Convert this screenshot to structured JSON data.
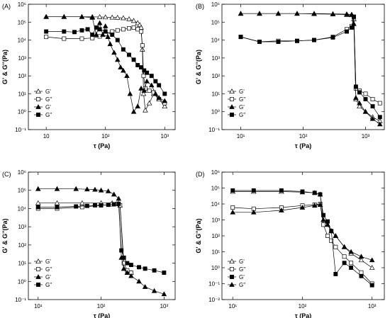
{
  "chart_data": [
    {
      "panel": "(A)",
      "type": "line",
      "ylabel": "G' & G''(Pa)",
      "xlabel": "τ (Pa)",
      "xscale": "log",
      "yscale": "log",
      "xlim": [
        5,
        1500
      ],
      "ylim": [
        0.1,
        1000000
      ],
      "xticks": [
        "10",
        "10²",
        "10³"
      ],
      "yticks": [
        "10⁻¹",
        "10⁰",
        "10¹",
        "10²",
        "10³",
        "10⁴",
        "10⁵",
        "10⁶"
      ],
      "legend_position": "bottom-left",
      "series": [
        {
          "name": "G'",
          "marker": "triangle-open",
          "x": [
            10,
            20,
            40,
            60,
            80,
            100,
            130,
            160,
            200,
            250,
            300,
            350,
            380,
            400,
            420,
            440,
            470,
            550,
            650,
            800,
            1000
          ],
          "y": [
            200000,
            200000,
            200000,
            198000,
            195000,
            190000,
            185000,
            180000,
            170000,
            150000,
            120000,
            90000,
            70000,
            50000,
            3000,
            10,
            1.2,
            3,
            10,
            5,
            2
          ]
        },
        {
          "name": "G''",
          "marker": "square-open",
          "x": [
            10,
            20,
            40,
            60,
            80,
            100,
            130,
            160,
            200,
            250,
            300,
            350,
            400,
            420,
            440,
            470,
            550,
            650,
            800,
            1000
          ],
          "y": [
            15000,
            12000,
            12000,
            13000,
            16000,
            22000,
            30000,
            35000,
            40000,
            45000,
            50000,
            40000,
            30000,
            5000,
            100,
            20,
            15,
            12,
            5,
            3
          ]
        },
        {
          "name": "G'",
          "marker": "triangle-filled",
          "x": [
            10,
            20,
            40,
            60,
            70,
            80,
            90,
            100,
            110,
            120,
            140,
            160,
            180,
            200,
            230,
            260,
            300,
            350,
            400,
            450,
            500,
            600,
            700,
            800,
            1000
          ],
          "y": [
            200000,
            200000,
            200000,
            180000,
            20000,
            90000,
            20000,
            60000,
            15000,
            6000,
            2000,
            800,
            300,
            200,
            100,
            10,
            1,
            2,
            20,
            15,
            50,
            30,
            10,
            6,
            4
          ]
        },
        {
          "name": "G''",
          "marker": "square-filled",
          "x": [
            10,
            20,
            30,
            40,
            50,
            60,
            70,
            80,
            100,
            130,
            160,
            200,
            250,
            300,
            350,
            400,
            450,
            500,
            600,
            700,
            800,
            1000
          ],
          "y": [
            30000,
            30000,
            28000,
            35000,
            40000,
            20000,
            50000,
            40000,
            30000,
            20000,
            10000,
            3000,
            1500,
            800,
            400,
            300,
            200,
            150,
            100,
            50,
            30,
            10
          ]
        }
      ]
    },
    {
      "panel": "(B)",
      "type": "line",
      "ylabel": "G' & G''(Pa)",
      "xlabel": "τ (Pa)",
      "xscale": "log",
      "yscale": "log",
      "xlim": [
        5,
        2000
      ],
      "ylim": [
        0.1,
        1000000
      ],
      "xticks": [
        "10¹",
        "10²",
        "10³"
      ],
      "yticks": [
        "10⁻¹",
        "10⁰",
        "10¹",
        "10²",
        "10³",
        "10⁴",
        "10⁵",
        "10⁶"
      ],
      "legend_position": "bottom-left",
      "series": [
        {
          "name": "G'",
          "marker": "triangle-open",
          "x": [
            10,
            20,
            40,
            80,
            150,
            300,
            500,
            600,
            650,
            700,
            800,
            1000,
            1300,
            1700
          ],
          "y": [
            300000,
            300000,
            300000,
            300000,
            290000,
            280000,
            260000,
            250000,
            150000,
            5,
            2,
            1,
            0.5,
            0.3
          ]
        },
        {
          "name": "G''",
          "marker": "square-open",
          "x": [
            10,
            20,
            40,
            80,
            150,
            300,
            500,
            600,
            650,
            700,
            800,
            1000,
            1300,
            1700
          ],
          "y": [
            15000,
            8000,
            9000,
            9000,
            10000,
            15000,
            40000,
            60000,
            200000,
            20,
            15,
            10,
            5,
            3
          ]
        },
        {
          "name": "G'",
          "marker": "triangle-filled",
          "x": [
            10,
            20,
            40,
            80,
            150,
            300,
            500,
            600,
            650,
            700,
            800,
            1000,
            1300,
            1700
          ],
          "y": [
            300000,
            300000,
            300000,
            300000,
            300000,
            290000,
            280000,
            270000,
            80000,
            6,
            3,
            1,
            0.4,
            0.2
          ]
        },
        {
          "name": "G''",
          "marker": "square-filled",
          "x": [
            10,
            20,
            40,
            80,
            150,
            300,
            500,
            600,
            650,
            700,
            800,
            1000,
            1300,
            1700
          ],
          "y": [
            15000,
            8000,
            8000,
            9000,
            10000,
            14000,
            30000,
            50000,
            200000,
            25,
            12,
            5,
            2,
            0.5
          ]
        }
      ]
    },
    {
      "panel": "(C)",
      "type": "line",
      "ylabel": "G' & G''(Pa)",
      "xlabel": "τ (Pa)",
      "xscale": "log",
      "yscale": "log",
      "xlim": [
        7,
        1500
      ],
      "ylim": [
        0.1,
        1000000
      ],
      "xticks": [
        "10¹",
        "10²",
        "10³"
      ],
      "yticks": [
        "10⁻¹",
        "10⁰",
        "10¹",
        "10²",
        "10³",
        "10⁴",
        "10⁵",
        "10⁶"
      ],
      "legend_position": "bottom-left",
      "series": [
        {
          "name": "G'",
          "marker": "triangle-open",
          "x": [
            10,
            20,
            50,
            100,
            150,
            180,
            200,
            230,
            260,
            300
          ],
          "y": [
            20000,
            20000,
            20000,
            20000,
            20000,
            18000,
            15000,
            5,
            3,
            3
          ]
        },
        {
          "name": "G''",
          "marker": "square-open",
          "x": [
            10,
            20,
            50,
            100,
            150,
            180,
            200,
            230,
            260,
            300
          ],
          "y": [
            10000,
            10000,
            12000,
            15000,
            17000,
            18000,
            15000,
            10,
            4,
            3
          ]
        },
        {
          "name": "G'",
          "marker": "triangle-filled",
          "x": [
            10,
            20,
            40,
            60,
            80,
            100,
            130,
            160,
            190,
            210,
            230,
            260,
            300,
            400,
            500,
            700,
            1000
          ],
          "y": [
            120000,
            120000,
            120000,
            115000,
            110000,
            100000,
            90000,
            60000,
            35000,
            20,
            5,
            3,
            2,
            1,
            0.5,
            0.3,
            0.2
          ]
        },
        {
          "name": "G''",
          "marker": "square-filled",
          "x": [
            10,
            20,
            40,
            60,
            80,
            100,
            130,
            160,
            190,
            210,
            230,
            260,
            300,
            400,
            500,
            700,
            1000
          ],
          "y": [
            12000,
            12000,
            13000,
            14000,
            15000,
            15000,
            16000,
            17000,
            18000,
            50,
            20,
            10,
            8,
            6,
            5,
            4,
            3
          ]
        }
      ]
    },
    {
      "panel": "(D)",
      "type": "line",
      "ylabel": "G' & G''(Pa)",
      "xlabel": "τ (Pa)",
      "xscale": "log",
      "yscale": "log",
      "xlim": [
        7,
        1500
      ],
      "ylim": [
        0.01,
        1000000
      ],
      "xticks": [
        "10¹",
        "10²",
        "10³"
      ],
      "yticks": [
        "10⁻²",
        "10⁻¹",
        "10⁰",
        "10¹",
        "10²",
        "10³",
        "10⁴",
        "10⁵",
        "10⁶"
      ],
      "legend_position": "bottom-left",
      "series": [
        {
          "name": "G'",
          "marker": "triangle-open",
          "x": [
            10,
            20,
            50,
            100,
            150,
            180,
            200,
            230,
            260,
            300,
            400,
            500,
            700,
            1000
          ],
          "y": [
            60000,
            60000,
            60000,
            55000,
            50000,
            40000,
            1000,
            500,
            200,
            100,
            20,
            8,
            3,
            1
          ]
        },
        {
          "name": "G''",
          "marker": "square-open",
          "x": [
            10,
            20,
            50,
            100,
            150,
            180,
            200,
            230,
            260,
            300,
            400,
            500,
            700,
            1000
          ],
          "y": [
            6000,
            5000,
            6000,
            8000,
            9000,
            10000,
            500,
            100,
            50,
            20,
            5,
            2,
            0.5,
            0.1
          ]
        },
        {
          "name": "G'",
          "marker": "square-filled",
          "x": [
            10,
            20,
            50,
            100,
            150,
            180,
            200,
            230,
            260,
            300,
            400,
            500,
            700,
            1000
          ],
          "y": [
            70000,
            70000,
            70000,
            60000,
            50000,
            40000,
            2000,
            800,
            200,
            0.4,
            2,
            1,
            0.3,
            0.08
          ]
        },
        {
          "name": "G''",
          "marker": "triangle-filled",
          "x": [
            10,
            20,
            50,
            100,
            150,
            180,
            200,
            230,
            260,
            300,
            400,
            500,
            700,
            1000
          ],
          "y": [
            3000,
            3000,
            4000,
            6000,
            8000,
            9000,
            1000,
            500,
            200,
            100,
            20,
            10,
            5,
            3
          ]
        }
      ]
    }
  ]
}
